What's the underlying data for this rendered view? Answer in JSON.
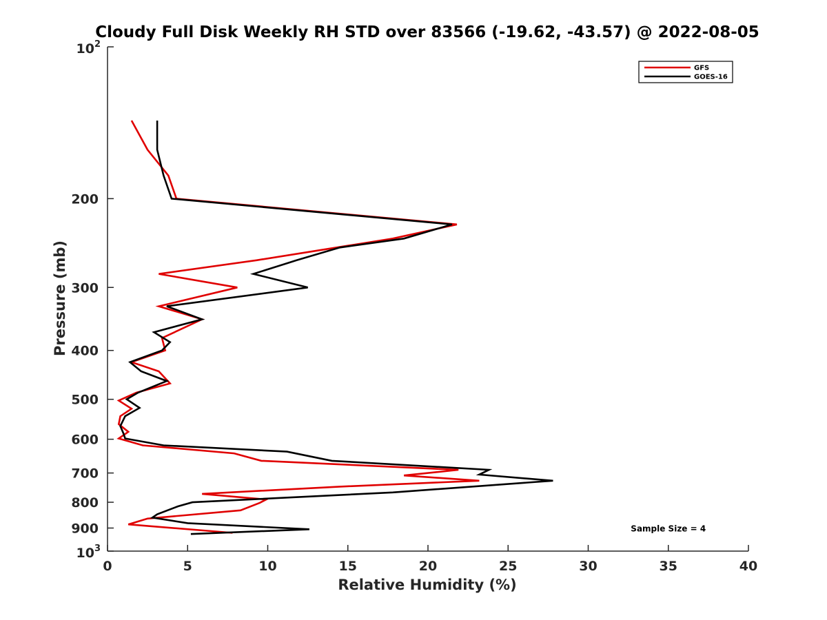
{
  "chart_data": {
    "type": "line",
    "title": "Cloudy Full Disk Weekly RH STD over 83566 (-19.62, -43.57) @ 2022-08-05",
    "xlabel": "Relative Humidity (%)",
    "ylabel": "Pressure (mb)",
    "xlim": [
      0,
      40
    ],
    "ylim": [
      100,
      1000
    ],
    "yscale": "log",
    "yreversed": true,
    "grid": false,
    "legend_position": "top-right",
    "x_ticks": [
      0,
      5,
      10,
      15,
      20,
      25,
      30,
      35,
      40
    ],
    "x_tick_labels": [
      "0",
      "5",
      "10",
      "15",
      "20",
      "25",
      "30",
      "35",
      "40"
    ],
    "y_ticks": [
      200,
      300,
      400,
      500,
      600,
      700,
      800,
      900
    ],
    "y_tick_labels": [
      "200",
      "300",
      "400",
      "500",
      "600",
      "700",
      "800",
      "900"
    ],
    "y_extreme_labels": {
      "top_base": "10",
      "top_exp": "2",
      "bottom_base": "10",
      "bottom_exp": "3"
    },
    "series": [
      {
        "name": "GFS",
        "color": "#e00000",
        "points": [
          [
            1.5,
            140
          ],
          [
            2.5,
            160
          ],
          [
            3.8,
            180
          ],
          [
            4.3,
            200
          ],
          [
            21.8,
            225
          ],
          [
            17.8,
            240
          ],
          [
            9.3,
            265
          ],
          [
            3.2,
            282
          ],
          [
            8.1,
            300
          ],
          [
            3.2,
            327
          ],
          [
            5.9,
            347
          ],
          [
            3.4,
            378
          ],
          [
            3.6,
            400
          ],
          [
            1.5,
            422
          ],
          [
            3.2,
            440
          ],
          [
            3.9,
            465
          ],
          [
            1.8,
            485
          ],
          [
            0.7,
            503
          ],
          [
            1.5,
            522
          ],
          [
            0.8,
            540
          ],
          [
            0.7,
            560
          ],
          [
            1.3,
            580
          ],
          [
            0.7,
            598
          ],
          [
            2.2,
            617
          ],
          [
            7.9,
            640
          ],
          [
            9.6,
            662
          ],
          [
            21.9,
            690
          ],
          [
            18.5,
            708
          ],
          [
            23.2,
            725
          ],
          [
            14.5,
            745
          ],
          [
            5.9,
            770
          ],
          [
            9.9,
            790
          ],
          [
            9.5,
            802
          ],
          [
            8.3,
            830
          ],
          [
            2.5,
            862
          ],
          [
            1.3,
            885
          ],
          [
            7.8,
            920
          ]
        ]
      },
      {
        "name": "GOES-16",
        "color": "#000000",
        "points": [
          [
            3.1,
            140
          ],
          [
            3.1,
            160
          ],
          [
            3.5,
            180
          ],
          [
            4.0,
            200
          ],
          [
            21.5,
            225
          ],
          [
            18.5,
            240
          ],
          [
            14.5,
            250
          ],
          [
            11.8,
            265
          ],
          [
            9.1,
            282
          ],
          [
            12.5,
            300
          ],
          [
            3.7,
            327
          ],
          [
            5.9,
            347
          ],
          [
            2.9,
            368
          ],
          [
            3.9,
            385
          ],
          [
            3.4,
            400
          ],
          [
            1.4,
            422
          ],
          [
            2.1,
            440
          ],
          [
            3.7,
            460
          ],
          [
            1.9,
            485
          ],
          [
            1.2,
            500
          ],
          [
            2.0,
            520
          ],
          [
            1.1,
            540
          ],
          [
            0.8,
            565
          ],
          [
            1.0,
            585
          ],
          [
            1.1,
            598
          ],
          [
            3.5,
            617
          ],
          [
            11.2,
            635
          ],
          [
            14.0,
            662
          ],
          [
            23.8,
            690
          ],
          [
            23.2,
            705
          ],
          [
            27.8,
            725
          ],
          [
            17.8,
            765
          ],
          [
            5.3,
            800
          ],
          [
            4.4,
            815
          ],
          [
            3.1,
            845
          ],
          [
            2.8,
            858
          ],
          [
            5.0,
            880
          ],
          [
            12.6,
            905
          ],
          [
            5.2,
            925
          ]
        ]
      }
    ],
    "annotations": [
      {
        "text": "Sample Size = 4",
        "x": 35,
        "y": 900
      }
    ]
  }
}
